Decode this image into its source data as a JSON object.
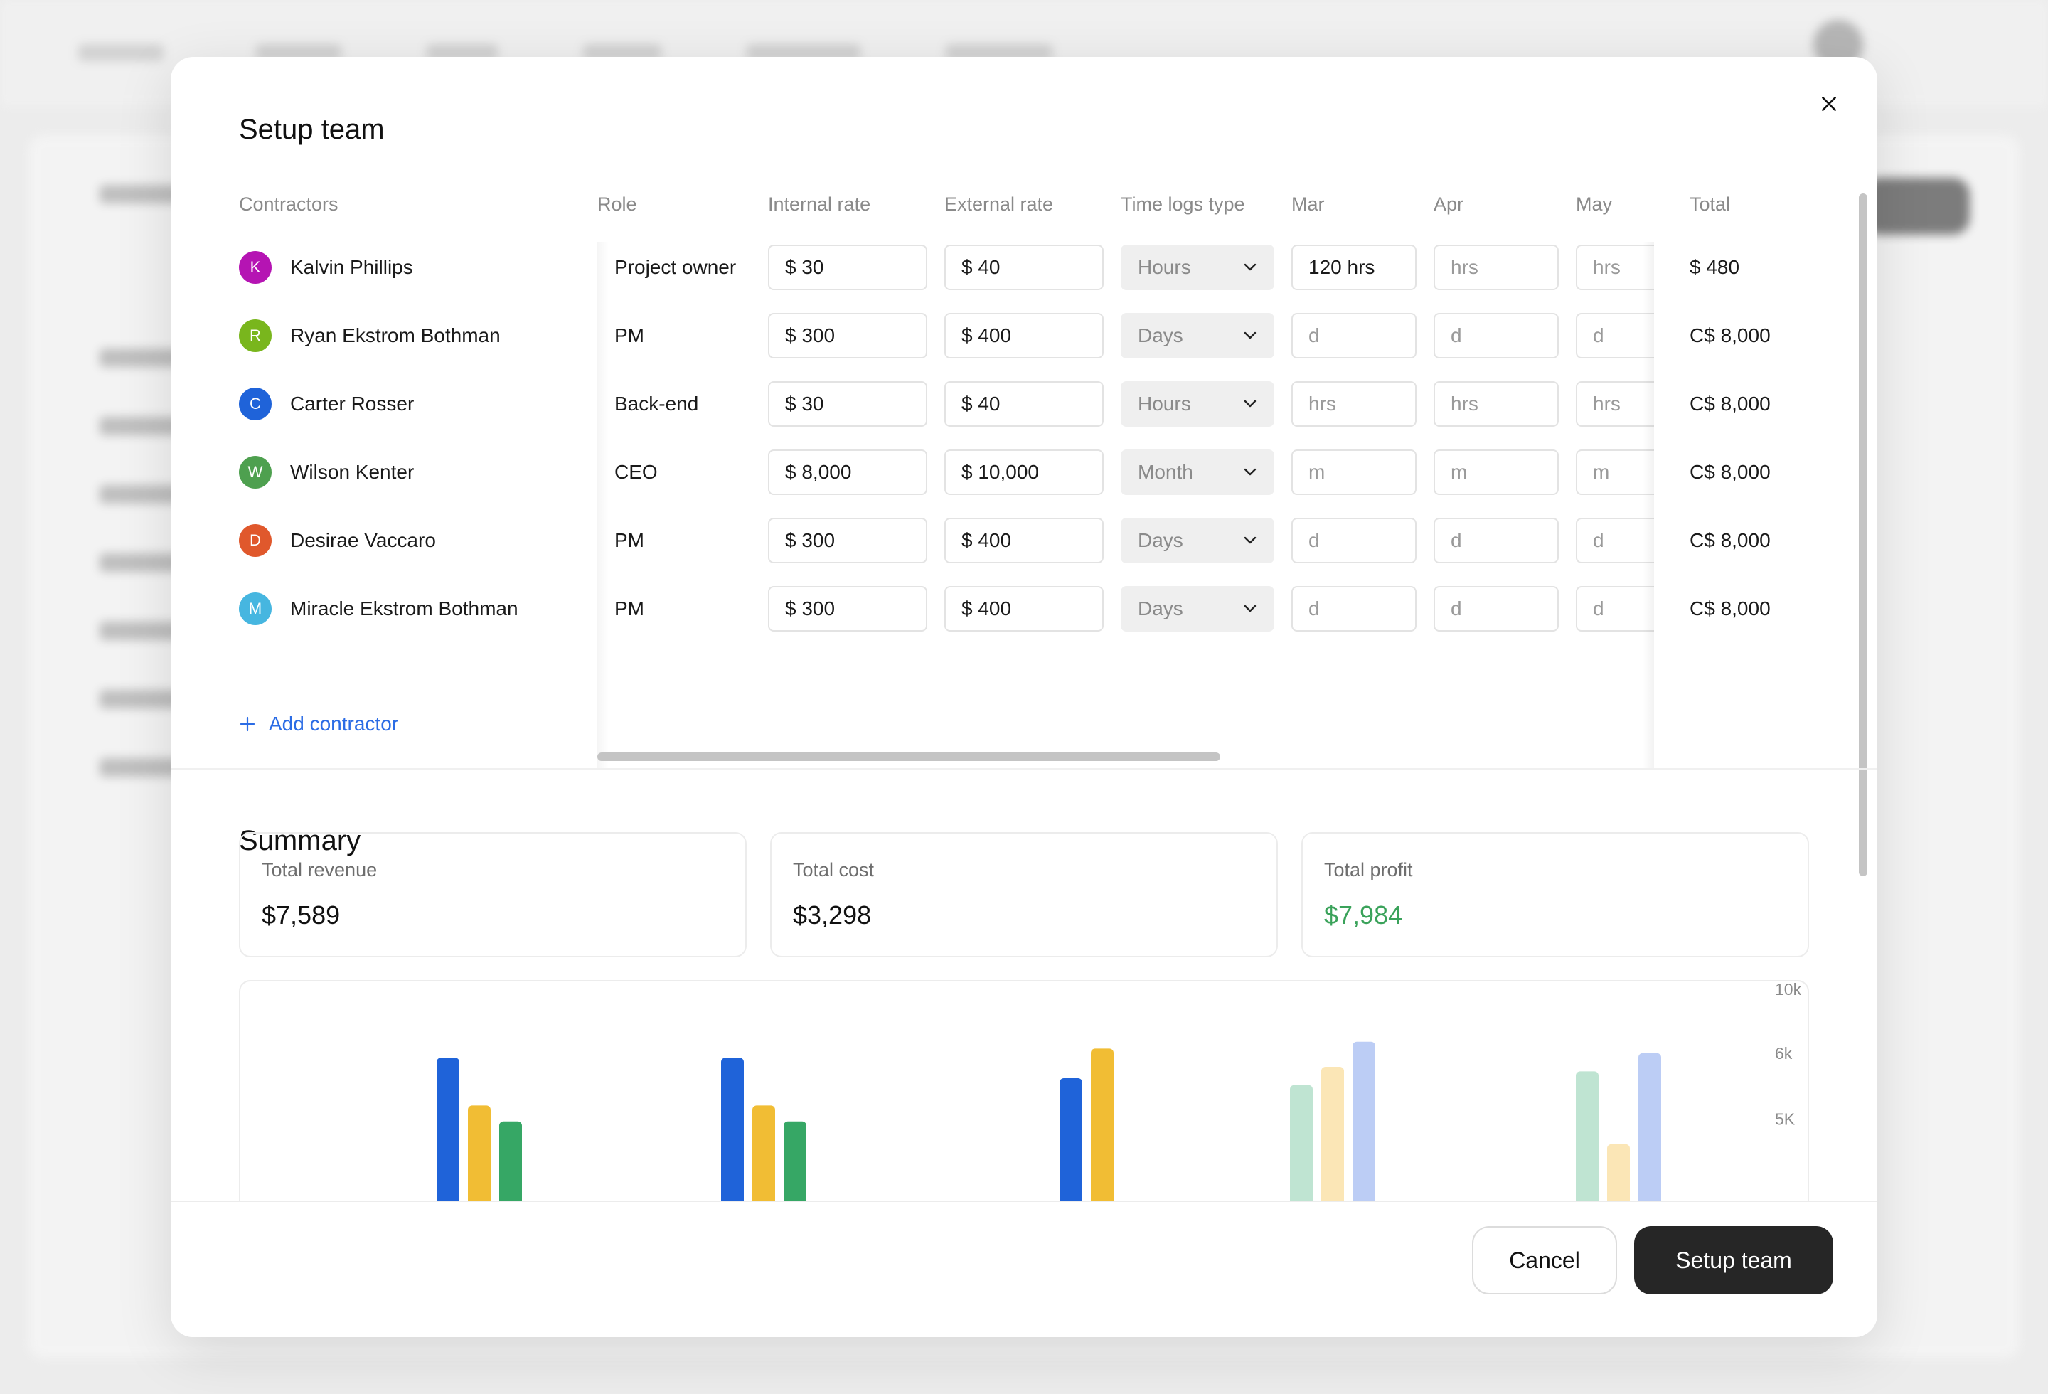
{
  "modal": {
    "title": "Setup team",
    "close_icon": "close-icon"
  },
  "table": {
    "headers": {
      "contractors": "Contractors",
      "role": "Role",
      "internal_rate": "Internal rate",
      "external_rate": "External rate",
      "time_logs_type": "Time logs type",
      "mar": "Mar",
      "apr": "Apr",
      "may": "May",
      "total": "Total"
    },
    "rows": [
      {
        "initial": "K",
        "avatar_color": "#b514b3",
        "name": "Kalvin Phillips",
        "role": "Project owner",
        "internal": "$ 30",
        "external": "$ 40",
        "log_type": "Hours",
        "mar": "120 hrs",
        "mar_filled": true,
        "apr": "hrs",
        "may": "hrs",
        "total": "$ 480"
      },
      {
        "initial": "R",
        "avatar_color": "#79b61d",
        "name": "Ryan Ekstrom Bothman",
        "role": "PM",
        "internal": "$ 300",
        "external": "$ 400",
        "log_type": "Days",
        "mar": "d",
        "mar_filled": false,
        "apr": "d",
        "may": "d",
        "total": "C$ 8,000"
      },
      {
        "initial": "C",
        "avatar_color": "#1f63d9",
        "name": "Carter Rosser",
        "role": "Back-end",
        "internal": "$ 30",
        "external": "$ 40",
        "log_type": "Hours",
        "mar": "hrs",
        "mar_filled": false,
        "apr": "hrs",
        "may": "hrs",
        "total": "C$ 8,000"
      },
      {
        "initial": "W",
        "avatar_color": "#4ea04f",
        "name": "Wilson Kenter",
        "role": "CEO",
        "internal": "$ 8,000",
        "external": "$ 10,000",
        "log_type": "Month",
        "mar": "m",
        "mar_filled": false,
        "apr": "m",
        "may": "m",
        "total": "C$ 8,000"
      },
      {
        "initial": "D",
        "avatar_color": "#e0582c",
        "name": "Desirae Vaccaro",
        "role": "PM",
        "internal": "$ 300",
        "external": "$ 400",
        "log_type": "Days",
        "mar": "d",
        "mar_filled": false,
        "apr": "d",
        "may": "d",
        "total": "C$ 8,000"
      },
      {
        "initial": "M",
        "avatar_color": "#46b6e0",
        "name": "Miracle Ekstrom Bothman",
        "role": "PM",
        "internal": "$ 300",
        "external": "$ 400",
        "log_type": "Days",
        "mar": "d",
        "mar_filled": false,
        "apr": "d",
        "may": "d",
        "total": "C$ 8,000"
      }
    ],
    "add_contractor": "Add contractor"
  },
  "summary": {
    "title": "Summary",
    "cards": [
      {
        "label": "Total revenue",
        "value": "$7,589"
      },
      {
        "label": "Total cost",
        "value": "$3,298"
      },
      {
        "label": "Total profit",
        "value": "$7,984"
      }
    ],
    "profit_color": "#3aa25a"
  },
  "chart_data": {
    "type": "bar",
    "y_tick_labels": [
      "10k",
      "6k",
      "5K"
    ],
    "series_colors": {
      "blue": "#1f63d9",
      "yellow": "#f1bd34",
      "green": "#36a765",
      "light_green": "#bfe4d2",
      "light_yellow": "#fbe6b6",
      "light_blue": "#bccdf5"
    },
    "groups": [
      {
        "bars": [
          {
            "color": "blue",
            "value": 6.9
          },
          {
            "color": "yellow",
            "value": 4.8
          },
          {
            "color": "green",
            "value": 4.1
          }
        ]
      },
      {
        "bars": [
          {
            "color": "blue",
            "value": 6.9
          },
          {
            "color": "yellow",
            "value": 4.8
          },
          {
            "color": "green",
            "value": 4.1
          }
        ]
      },
      {
        "bars": [
          {
            "color": "blue",
            "value": 6.0
          },
          {
            "color": "yellow",
            "value": 7.3
          }
        ]
      },
      {
        "bars": [
          {
            "color": "light_green",
            "value": 5.7
          },
          {
            "color": "light_yellow",
            "value": 6.5
          },
          {
            "color": "light_blue",
            "value": 7.6
          }
        ]
      },
      {
        "bars": [
          {
            "color": "light_green",
            "value": 6.3
          },
          {
            "color": "light_yellow",
            "value": 3.1
          },
          {
            "color": "light_blue",
            "value": 7.1
          }
        ]
      }
    ]
  },
  "footer": {
    "cancel_label": "Cancel",
    "primary_label": "Setup team"
  }
}
